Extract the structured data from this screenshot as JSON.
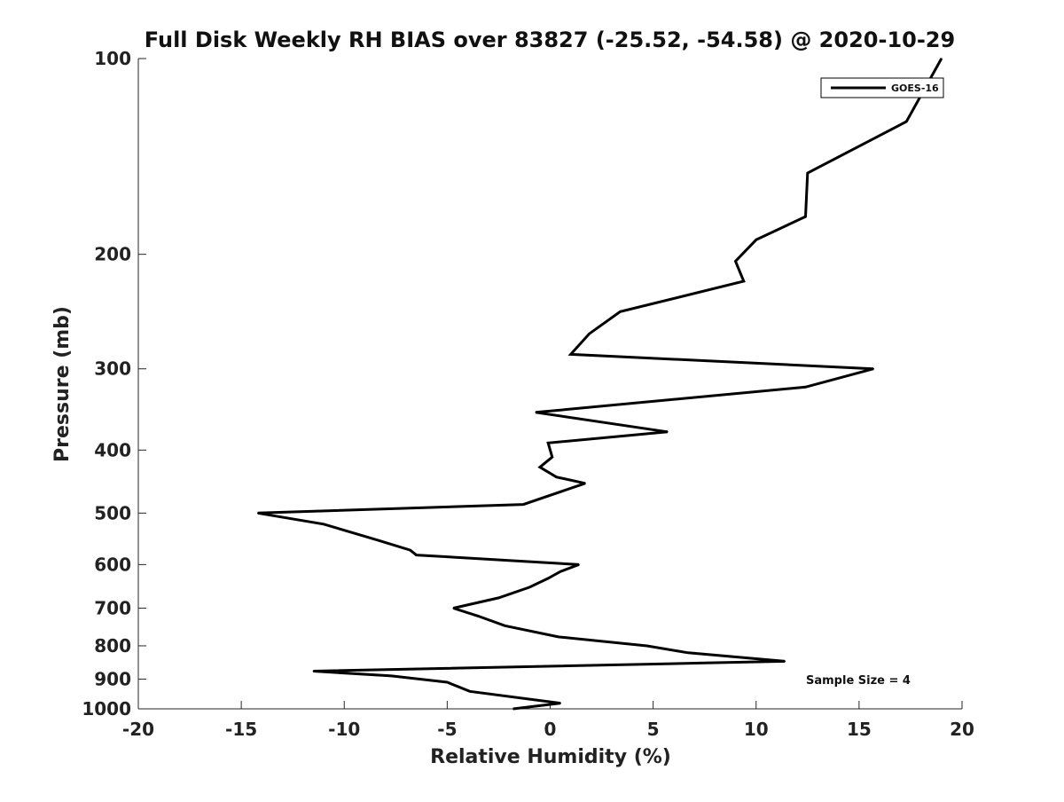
{
  "chart_data": {
    "type": "line",
    "title": "Full Disk Weekly RH BIAS over 83827 (-25.52, -54.58) @ 2020-10-29",
    "xlabel": "Relative Humidity (%)",
    "ylabel": "Pressure (mb)",
    "xlim": [
      -20,
      20
    ],
    "ylim": [
      100,
      1000
    ],
    "yscale": "log",
    "y_reversed": true,
    "xticks": [
      -20,
      -15,
      -10,
      -5,
      0,
      5,
      10,
      15,
      20
    ],
    "yticks": [
      100,
      200,
      300,
      400,
      500,
      600,
      700,
      800,
      900,
      1000
    ],
    "legend_position": "top-right",
    "grid": false,
    "annotation": "Sample Size = 4",
    "series": [
      {
        "name": "GOES-16",
        "color": "#000000",
        "x": [
          19.0,
          17.3,
          12.5,
          12.4,
          10.0,
          9.0,
          9.4,
          3.4,
          1.9,
          1.0,
          15.7,
          12.4,
          -0.7,
          5.7,
          -0.1,
          0.0,
          0.1,
          -0.5,
          0.3,
          1.7,
          -1.3,
          -14.2,
          -11.0,
          -8.4,
          -6.8,
          -6.5,
          1.4,
          0.5,
          -0.1,
          -1.0,
          -2.5,
          -4.7,
          -3.5,
          -2.2,
          0.4,
          4.7,
          6.7,
          11.4,
          7.5,
          -11.5,
          -7.7,
          -5.0,
          -3.9,
          0.5,
          -1.8
        ],
        "y": [
          100,
          125,
          150,
          175,
          190,
          205,
          220,
          245,
          265,
          285,
          300,
          320,
          350,
          375,
          390,
          400,
          410,
          425,
          440,
          450,
          485,
          500,
          520,
          550,
          570,
          580,
          600,
          615,
          630,
          650,
          675,
          700,
          720,
          745,
          775,
          800,
          820,
          845,
          850,
          875,
          890,
          910,
          940,
          980,
          1000
        ]
      }
    ]
  }
}
